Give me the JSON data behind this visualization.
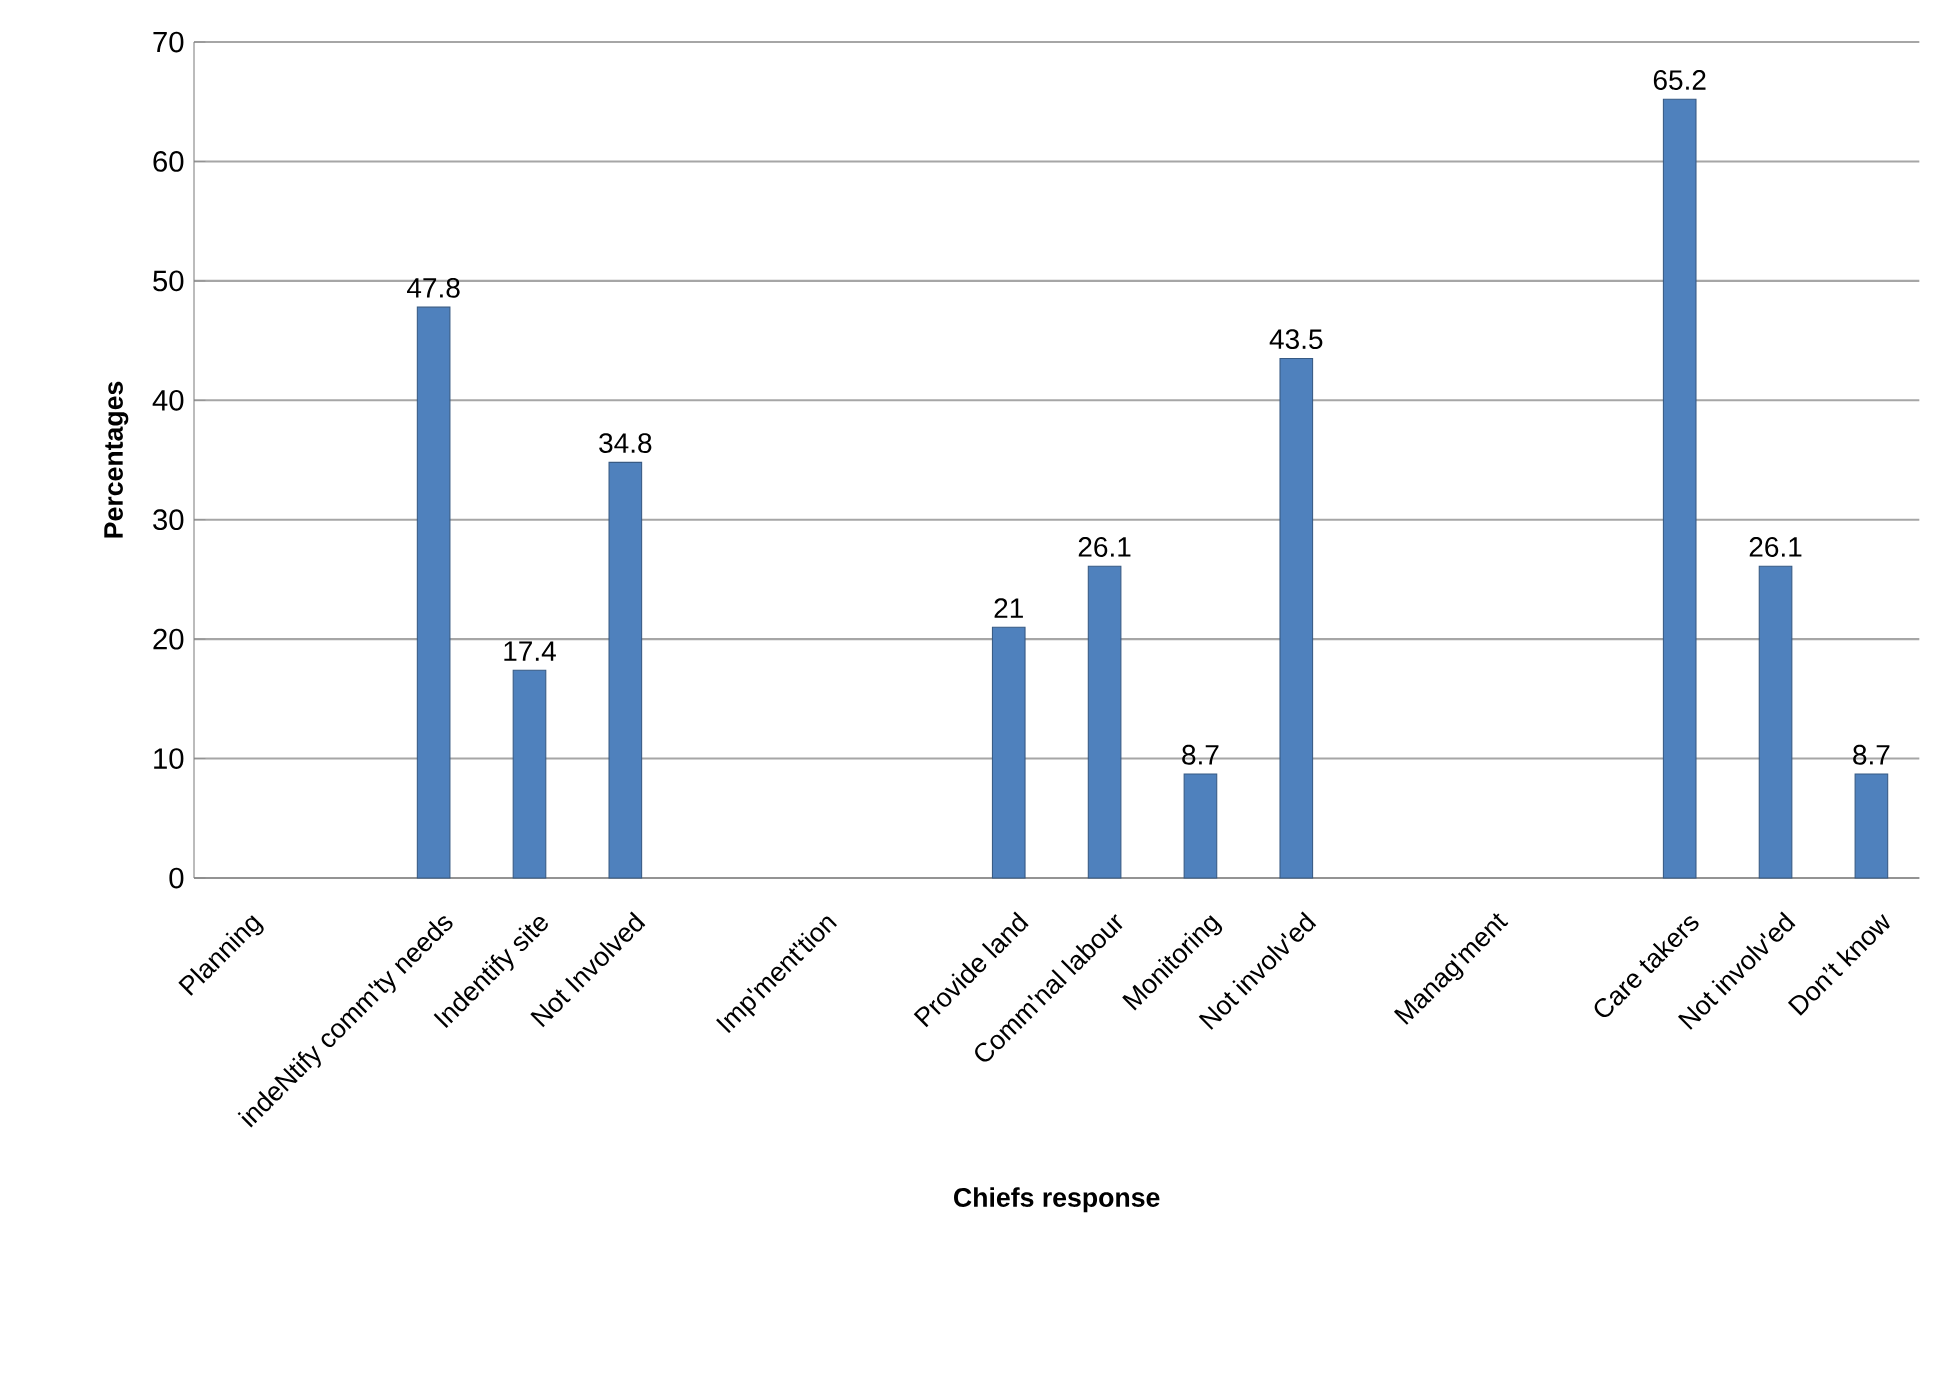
{
  "chart_data": {
    "type": "bar",
    "xlabel": "Chiefs response",
    "ylabel": "Percentages",
    "categories": [
      "Planning",
      null,
      "indeNtify comm'ty needs",
      "Indentify site",
      "Not Involved",
      null,
      "Imp'ment'tion",
      null,
      "Provide land",
      "Comm'nal labour",
      "Monitoring",
      "Not involv'ed",
      null,
      "Manag'ment",
      null,
      "Care takers",
      "Not involv'ed",
      "Don’t know"
    ],
    "values": [
      null,
      null,
      47.8,
      17.4,
      34.8,
      null,
      null,
      null,
      21,
      26.1,
      8.7,
      43.5,
      null,
      null,
      null,
      65.2,
      26.1,
      8.7
    ],
    "color": "#4f81bd",
    "ylim": [
      0,
      70
    ],
    "yticks": [
      0,
      10,
      20,
      30,
      40,
      50,
      60,
      70
    ],
    "grid": "y",
    "data_labels": true
  }
}
